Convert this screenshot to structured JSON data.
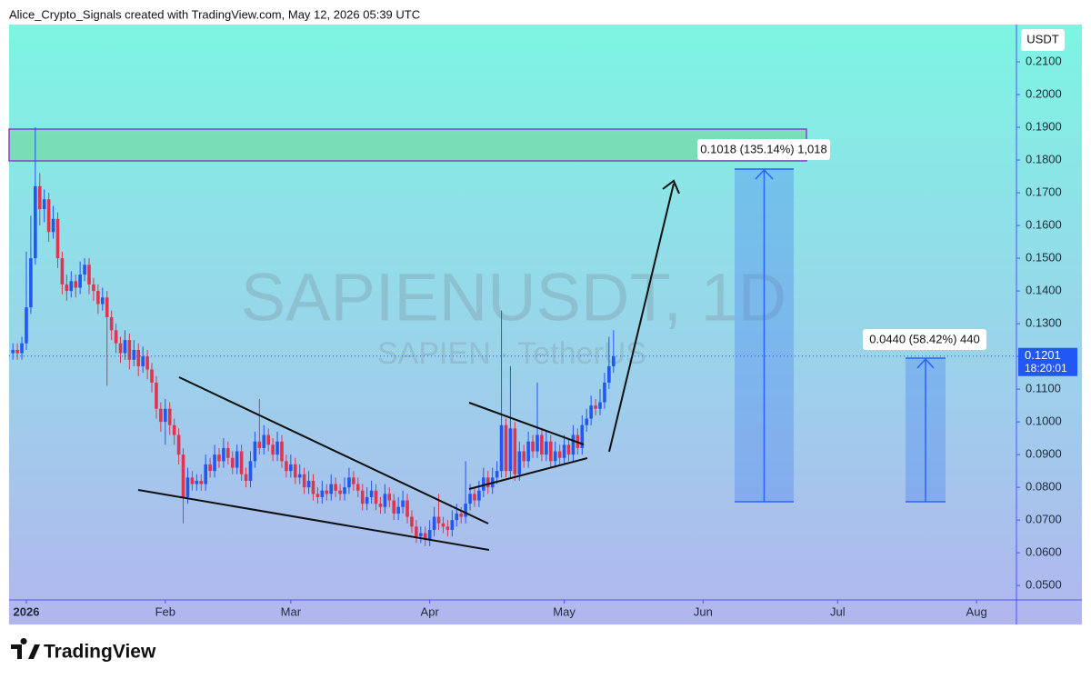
{
  "header": {
    "credit": "Alice_Crypto_Signals created with TradingView.com, May 12, 2026 05:39 UTC"
  },
  "footer": {
    "logo": "TradingView"
  },
  "chart_data": {
    "type": "candlestick",
    "title": "SAPIENUSDT, 1D",
    "subtitle": "SAPIEN · TetherUS",
    "currency": "USDT",
    "last_price": 0.1201,
    "countdown": "18:20:01",
    "up_color": "#2157f3",
    "down_color": "#e0344f",
    "grid": false,
    "xlim": [
      -3.85,
      220.9
    ],
    "xticks": [
      {
        "value": 0,
        "label": "2026"
      },
      {
        "value": 31,
        "label": "Feb"
      },
      {
        "value": 59,
        "label": "Mar"
      },
      {
        "value": 90,
        "label": "Apr"
      },
      {
        "value": 120,
        "label": "May"
      },
      {
        "value": 151,
        "label": "Jun"
      },
      {
        "value": 181,
        "label": "Jul"
      },
      {
        "value": 212,
        "label": "Aug"
      }
    ],
    "ylim": [
      0.0456,
      0.2214
    ],
    "yticks": [
      {
        "value": 0.21,
        "label": "0.2100"
      },
      {
        "value": 0.2,
        "label": "0.2000"
      },
      {
        "value": 0.19,
        "label": "0.1900"
      },
      {
        "value": 0.18,
        "label": "0.1800"
      },
      {
        "value": 0.17,
        "label": "0.1700"
      },
      {
        "value": 0.16,
        "label": "0.1600"
      },
      {
        "value": 0.15,
        "label": "0.1500"
      },
      {
        "value": 0.14,
        "label": "0.1400"
      },
      {
        "value": 0.13,
        "label": "0.1300"
      },
      {
        "value": 0.12,
        "label": "0.1200"
      },
      {
        "value": 0.11,
        "label": "0.1100"
      },
      {
        "value": 0.1,
        "label": "0.1000"
      },
      {
        "value": 0.09,
        "label": "0.0900"
      },
      {
        "value": 0.08,
        "label": "0.0800"
      },
      {
        "value": 0.07,
        "label": "0.0700"
      },
      {
        "value": 0.06,
        "label": "0.0600"
      },
      {
        "value": 0.05,
        "label": "0.0500"
      }
    ],
    "measures": [
      "0.1018 (135.14%) 1,018",
      "0.0440 (58.42%) 440"
    ],
    "ohlc": [
      [
        -3,
        0.121,
        0.124,
        0.119,
        0.122
      ],
      [
        -2,
        0.122,
        0.124,
        0.119,
        0.121
      ],
      [
        -1,
        0.121,
        0.126,
        0.119,
        0.124
      ],
      [
        0,
        0.124,
        0.152,
        0.122,
        0.135
      ],
      [
        1,
        0.135,
        0.163,
        0.133,
        0.15
      ],
      [
        2,
        0.15,
        0.19,
        0.148,
        0.172
      ],
      [
        3,
        0.172,
        0.176,
        0.16,
        0.165
      ],
      [
        4,
        0.165,
        0.171,
        0.161,
        0.168
      ],
      [
        5,
        0.168,
        0.17,
        0.155,
        0.158
      ],
      [
        6,
        0.158,
        0.166,
        0.156,
        0.162
      ],
      [
        7,
        0.162,
        0.164,
        0.147,
        0.15
      ],
      [
        8,
        0.15,
        0.152,
        0.139,
        0.142
      ],
      [
        9,
        0.142,
        0.145,
        0.137,
        0.14
      ],
      [
        10,
        0.14,
        0.146,
        0.138,
        0.143
      ],
      [
        11,
        0.143,
        0.145,
        0.138,
        0.141
      ],
      [
        12,
        0.141,
        0.149,
        0.139,
        0.145
      ],
      [
        13,
        0.145,
        0.15,
        0.143,
        0.148
      ],
      [
        14,
        0.148,
        0.15,
        0.139,
        0.142
      ],
      [
        15,
        0.142,
        0.144,
        0.137,
        0.14
      ],
      [
        16,
        0.14,
        0.142,
        0.133,
        0.136
      ],
      [
        17,
        0.136,
        0.141,
        0.134,
        0.138
      ],
      [
        18,
        0.138,
        0.14,
        0.111,
        0.132
      ],
      [
        19,
        0.132,
        0.134,
        0.125,
        0.128
      ],
      [
        20,
        0.128,
        0.13,
        0.121,
        0.124
      ],
      [
        21,
        0.124,
        0.126,
        0.118,
        0.121
      ],
      [
        22,
        0.121,
        0.128,
        0.119,
        0.125
      ],
      [
        23,
        0.125,
        0.127,
        0.116,
        0.119
      ],
      [
        24,
        0.119,
        0.125,
        0.117,
        0.122
      ],
      [
        25,
        0.122,
        0.124,
        0.114,
        0.117
      ],
      [
        26,
        0.117,
        0.123,
        0.115,
        0.12
      ],
      [
        27,
        0.12,
        0.122,
        0.113,
        0.116
      ],
      [
        28,
        0.116,
        0.118,
        0.109,
        0.112
      ],
      [
        29,
        0.112,
        0.114,
        0.101,
        0.104
      ],
      [
        30,
        0.104,
        0.106,
        0.097,
        0.1
      ],
      [
        31,
        0.1,
        0.107,
        0.093,
        0.104
      ],
      [
        32,
        0.104,
        0.106,
        0.096,
        0.099
      ],
      [
        33,
        0.099,
        0.101,
        0.093,
        0.096
      ],
      [
        34,
        0.096,
        0.098,
        0.087,
        0.09
      ],
      [
        35,
        0.09,
        0.092,
        0.069,
        0.077
      ],
      [
        36,
        0.077,
        0.086,
        0.075,
        0.083
      ],
      [
        37,
        0.083,
        0.085,
        0.079,
        0.081
      ],
      [
        38,
        0.081,
        0.084,
        0.079,
        0.082
      ],
      [
        39,
        0.082,
        0.084,
        0.079,
        0.081
      ],
      [
        40,
        0.081,
        0.09,
        0.079,
        0.087
      ],
      [
        41,
        0.087,
        0.089,
        0.083,
        0.085
      ],
      [
        42,
        0.085,
        0.093,
        0.083,
        0.09
      ],
      [
        43,
        0.09,
        0.092,
        0.086,
        0.088
      ],
      [
        44,
        0.088,
        0.095,
        0.086,
        0.092
      ],
      [
        45,
        0.092,
        0.094,
        0.087,
        0.089
      ],
      [
        46,
        0.089,
        0.091,
        0.084,
        0.086
      ],
      [
        47,
        0.086,
        0.093,
        0.084,
        0.091
      ],
      [
        48,
        0.091,
        0.093,
        0.082,
        0.084
      ],
      [
        49,
        0.084,
        0.086,
        0.08,
        0.082
      ],
      [
        50,
        0.082,
        0.091,
        0.08,
        0.088
      ],
      [
        51,
        0.088,
        0.097,
        0.086,
        0.094
      ],
      [
        52,
        0.094,
        0.107,
        0.09,
        0.092
      ],
      [
        53,
        0.092,
        0.099,
        0.09,
        0.096
      ],
      [
        54,
        0.096,
        0.098,
        0.091,
        0.093
      ],
      [
        55,
        0.093,
        0.095,
        0.088,
        0.09
      ],
      [
        56,
        0.09,
        0.097,
        0.088,
        0.094
      ],
      [
        57,
        0.094,
        0.096,
        0.086,
        0.088
      ],
      [
        58,
        0.088,
        0.09,
        0.083,
        0.085
      ],
      [
        59,
        0.085,
        0.09,
        0.083,
        0.087
      ],
      [
        60,
        0.087,
        0.089,
        0.081,
        0.083
      ],
      [
        61,
        0.083,
        0.087,
        0.081,
        0.084
      ],
      [
        62,
        0.084,
        0.086,
        0.078,
        0.08
      ],
      [
        63,
        0.08,
        0.085,
        0.078,
        0.082
      ],
      [
        64,
        0.082,
        0.084,
        0.076,
        0.078
      ],
      [
        65,
        0.078,
        0.08,
        0.075,
        0.077
      ],
      [
        66,
        0.077,
        0.082,
        0.075,
        0.079
      ],
      [
        67,
        0.079,
        0.081,
        0.076,
        0.078
      ],
      [
        68,
        0.078,
        0.084,
        0.076,
        0.081
      ],
      [
        69,
        0.081,
        0.083,
        0.077,
        0.079
      ],
      [
        70,
        0.079,
        0.081,
        0.076,
        0.078
      ],
      [
        71,
        0.078,
        0.083,
        0.076,
        0.08
      ],
      [
        72,
        0.08,
        0.086,
        0.078,
        0.083
      ],
      [
        73,
        0.083,
        0.085,
        0.079,
        0.081
      ],
      [
        74,
        0.081,
        0.083,
        0.077,
        0.079
      ],
      [
        75,
        0.079,
        0.081,
        0.073,
        0.075
      ],
      [
        76,
        0.075,
        0.08,
        0.073,
        0.077
      ],
      [
        77,
        0.077,
        0.082,
        0.075,
        0.079
      ],
      [
        78,
        0.079,
        0.081,
        0.073,
        0.075
      ],
      [
        79,
        0.075,
        0.077,
        0.072,
        0.074
      ],
      [
        80,
        0.074,
        0.081,
        0.072,
        0.078
      ],
      [
        81,
        0.078,
        0.08,
        0.074,
        0.076
      ],
      [
        82,
        0.076,
        0.078,
        0.07,
        0.072
      ],
      [
        83,
        0.072,
        0.077,
        0.07,
        0.074
      ],
      [
        84,
        0.074,
        0.079,
        0.072,
        0.076
      ],
      [
        85,
        0.076,
        0.078,
        0.069,
        0.071
      ],
      [
        86,
        0.071,
        0.073,
        0.066,
        0.068
      ],
      [
        87,
        0.068,
        0.07,
        0.063,
        0.065
      ],
      [
        88,
        0.065,
        0.068,
        0.063,
        0.066
      ],
      [
        89,
        0.066,
        0.068,
        0.062,
        0.064
      ],
      [
        90,
        0.064,
        0.07,
        0.062,
        0.067
      ],
      [
        91,
        0.067,
        0.074,
        0.065,
        0.071
      ],
      [
        92,
        0.071,
        0.078,
        0.067,
        0.069
      ],
      [
        93,
        0.069,
        0.071,
        0.066,
        0.068
      ],
      [
        94,
        0.068,
        0.07,
        0.065,
        0.067
      ],
      [
        95,
        0.067,
        0.073,
        0.065,
        0.07
      ],
      [
        96,
        0.07,
        0.075,
        0.068,
        0.072
      ],
      [
        97,
        0.072,
        0.074,
        0.069,
        0.071
      ],
      [
        98,
        0.071,
        0.088,
        0.069,
        0.075
      ],
      [
        99,
        0.075,
        0.081,
        0.073,
        0.078
      ],
      [
        100,
        0.078,
        0.08,
        0.074,
        0.076
      ],
      [
        101,
        0.076,
        0.082,
        0.074,
        0.079
      ],
      [
        102,
        0.079,
        0.086,
        0.077,
        0.083
      ],
      [
        103,
        0.083,
        0.085,
        0.078,
        0.08
      ],
      [
        104,
        0.08,
        0.086,
        0.078,
        0.083
      ],
      [
        105,
        0.083,
        0.088,
        0.081,
        0.085
      ],
      [
        106,
        0.085,
        0.134,
        0.083,
        0.099
      ],
      [
        107,
        0.099,
        0.101,
        0.083,
        0.085
      ],
      [
        108,
        0.085,
        0.117,
        0.083,
        0.098
      ],
      [
        109,
        0.098,
        0.1,
        0.082,
        0.084
      ],
      [
        110,
        0.084,
        0.094,
        0.082,
        0.091
      ],
      [
        111,
        0.091,
        0.093,
        0.086,
        0.088
      ],
      [
        112,
        0.088,
        0.097,
        0.086,
        0.094
      ],
      [
        113,
        0.094,
        0.096,
        0.089,
        0.091
      ],
      [
        114,
        0.091,
        0.112,
        0.089,
        0.096
      ],
      [
        115,
        0.096,
        0.098,
        0.088,
        0.09
      ],
      [
        116,
        0.09,
        0.097,
        0.088,
        0.094
      ],
      [
        117,
        0.094,
        0.096,
        0.086,
        0.088
      ],
      [
        118,
        0.088,
        0.094,
        0.086,
        0.091
      ],
      [
        119,
        0.091,
        0.093,
        0.087,
        0.089
      ],
      [
        120,
        0.089,
        0.096,
        0.087,
        0.093
      ],
      [
        121,
        0.093,
        0.095,
        0.088,
        0.09
      ],
      [
        122,
        0.09,
        0.099,
        0.088,
        0.096
      ],
      [
        123,
        0.096,
        0.098,
        0.09,
        0.092
      ],
      [
        124,
        0.092,
        0.102,
        0.09,
        0.099
      ],
      [
        125,
        0.099,
        0.104,
        0.097,
        0.101
      ],
      [
        126,
        0.101,
        0.108,
        0.099,
        0.105
      ],
      [
        127,
        0.105,
        0.107,
        0.102,
        0.104
      ],
      [
        128,
        0.104,
        0.11,
        0.102,
        0.106
      ],
      [
        129,
        0.106,
        0.115,
        0.104,
        0.112
      ],
      [
        130,
        0.112,
        0.126,
        0.11,
        0.117
      ],
      [
        131,
        0.117,
        0.128,
        0.115,
        0.1201
      ]
    ]
  }
}
